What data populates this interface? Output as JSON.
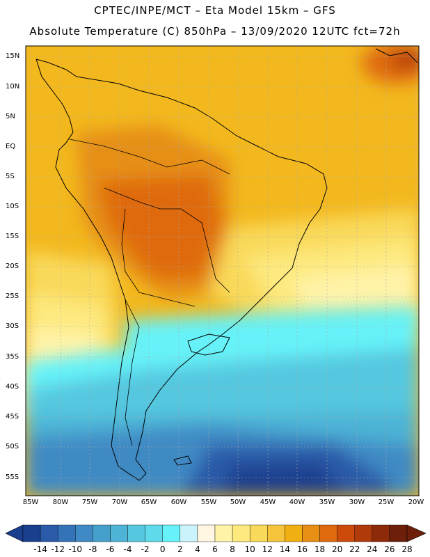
{
  "title_line1": "CPTEC/INPE/MCT  –   Eta Model 15km  – GFS",
  "title_line2": "Absolute Temperature (C) 850hPa – 13/09/2020 12UTC fct=72h",
  "lat_labels": [
    "15N",
    "10N",
    "5N",
    "EQ",
    "5S",
    "10S",
    "15S",
    "20S",
    "25S",
    "30S",
    "35S",
    "40S",
    "45S",
    "50S",
    "55S"
  ],
  "lon_labels": [
    "85W",
    "80W",
    "75W",
    "70W",
    "65W",
    "60W",
    "55W",
    "50W",
    "45W",
    "40W",
    "35W",
    "30W",
    "25W",
    "20W"
  ],
  "colorbar": {
    "labels": [
      "-14",
      "-12",
      "-10",
      "-8",
      "-6",
      "-4",
      "-2",
      "0",
      "2",
      "4",
      "6",
      "8",
      "10",
      "12",
      "14",
      "16",
      "18",
      "20",
      "22",
      "24",
      "26",
      "28"
    ],
    "colors": [
      "#1a3f8f",
      "#2a5aa8",
      "#3573b8",
      "#3f8ac4",
      "#46a0cc",
      "#4eb3d6",
      "#55c8e0",
      "#5fdaea",
      "#66f2f8",
      "#cbf3fb",
      "#fff7e2",
      "#fff3a8",
      "#fde97e",
      "#f9d95a",
      "#f5c43a",
      "#f0b012",
      "#e68f14",
      "#df6a0e",
      "#cc4a0c",
      "#b03a0a",
      "#8c2a0a",
      "#6e1f0a"
    ]
  }
}
